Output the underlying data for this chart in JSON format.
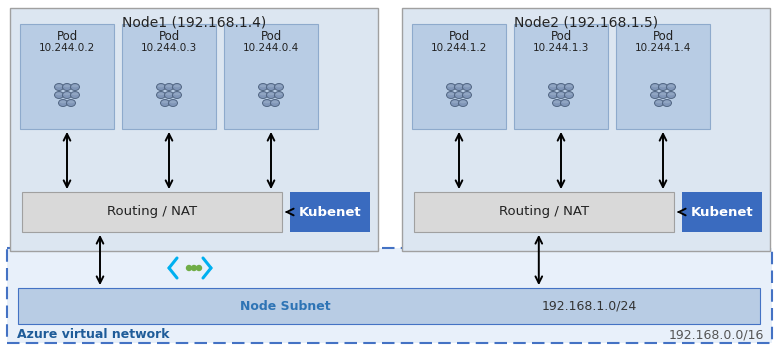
{
  "fig_width": 7.8,
  "fig_height": 3.49,
  "dpi": 100,
  "bg_color": "#ffffff",
  "node1_label": "Node1 (192.168.1.4)",
  "node2_label": "Node2 (192.168.1.5)",
  "node_box_color": "#dce6f1",
  "node_box_edge": "#a0a0a0",
  "pod_box_color": "#b8cce4",
  "pod_box_edge": "#8eaacc",
  "routing_box_color": "#d9d9d9",
  "routing_box_edge": "#a0a0a0",
  "kubenet_box_color": "#3a6bbf",
  "kubenet_text_color": "#ffffff",
  "subnet_box_color": "#b8cce4",
  "subnet_box_edge": "#4472c4",
  "azure_vnet_box_color": "#e8f0fa",
  "azure_vnet_edge_color": "#4472c4",
  "node_subnet_label": "Node Subnet",
  "node_subnet_ip": "192.168.1.0/24",
  "azure_vnet_label": "Azure virtual network",
  "azure_vnet_ip": "192.168.0.0/16",
  "azure_label_color": "#1f5c99",
  "node_subnet_label_color": "#2e74b5",
  "pods_node1": [
    [
      "Pod",
      "10.244.0.2"
    ],
    [
      "Pod",
      "10.244.0.3"
    ],
    [
      "Pod",
      "10.244.0.4"
    ]
  ],
  "pods_node2": [
    [
      "Pod",
      "10.244.1.2"
    ],
    [
      "Pod",
      "10.244.1.3"
    ],
    [
      "Pod",
      "10.244.1.4"
    ]
  ],
  "routing_label": "Routing / NAT",
  "kubenet_label": "Kubenet",
  "arrow_color": "#000000",
  "cyan_color": "#00b0f0",
  "green_dots_color": "#70ad47",
  "pod_icon_color": "#8096b8",
  "pod_icon_edge": "#4a5e7a"
}
